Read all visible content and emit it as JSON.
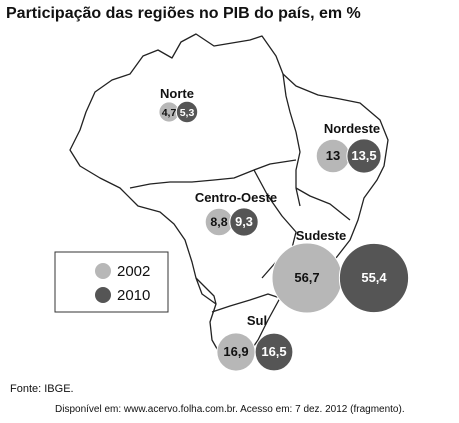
{
  "title": "Participação das regiões no PIB do país, em %",
  "source": "Fonte: IBGE.",
  "credit": "Disponível em: www.acervo.folha.com.br. Acesso em: 7 dez. 2012 (fragmento).",
  "colors": {
    "y2002": "#b7b7b7",
    "y2010": "#555555",
    "map_stroke": "#222222"
  },
  "chart_data": {
    "type": "bubble-map",
    "title": "Participação das regiões no PIB do país, em %",
    "unit": "%",
    "legend": {
      "position": "left-middle",
      "entries": [
        "2002",
        "2010"
      ]
    },
    "series": [
      {
        "name": "2002",
        "color": "#b7b7b7"
      },
      {
        "name": "2010",
        "color": "#555555"
      }
    ],
    "regions": [
      {
        "name": "Norte",
        "values": [
          4.7,
          5.3
        ],
        "labels": [
          "4,7",
          "5,3"
        ]
      },
      {
        "name": "Nordeste",
        "values": [
          13,
          13.5
        ],
        "labels": [
          "13",
          "13,5"
        ]
      },
      {
        "name": "Centro-Oeste",
        "values": [
          8.8,
          9.3
        ],
        "labels": [
          "8,8",
          "9,3"
        ]
      },
      {
        "name": "Sudeste",
        "values": [
          56.7,
          55.4
        ],
        "labels": [
          "56,7",
          "55,4"
        ]
      },
      {
        "name": "Sul",
        "values": [
          16.9,
          16.5
        ],
        "labels": [
          "16,9",
          "16,5"
        ]
      }
    ]
  }
}
